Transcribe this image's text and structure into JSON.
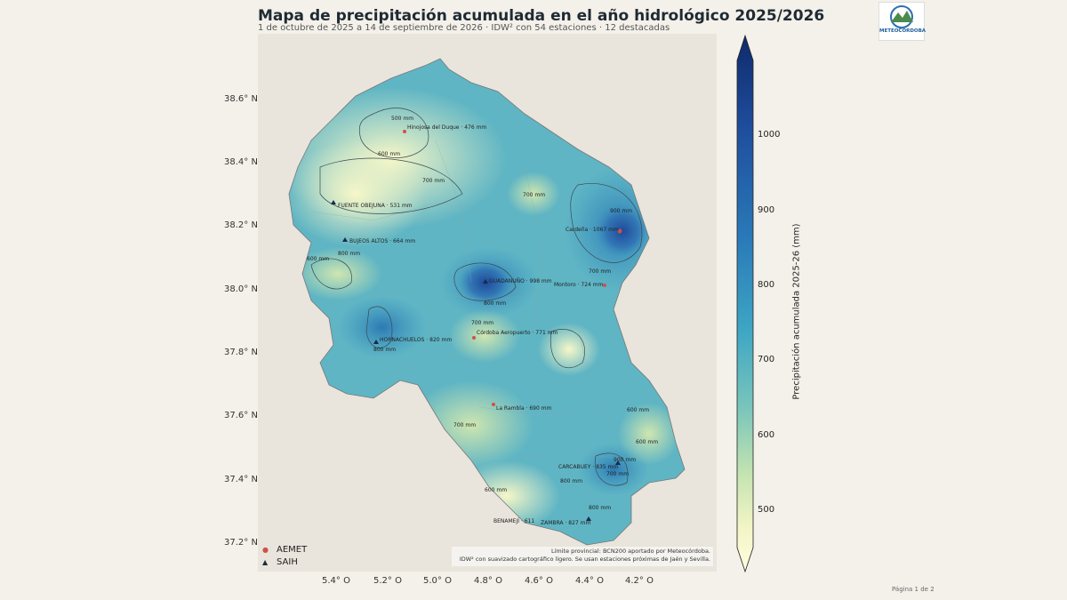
{
  "header": {
    "title": "Mapa de precipitación acumulada en el año hidrológico 2025/2026",
    "subtitle": "1 de octubre de 2025 a 14 de septiembre de 2026 · IDW² con 54 estaciones · 12 destacadas"
  },
  "logo": {
    "text": "METEOCÓRDOBA"
  },
  "axes": {
    "y_ticks": [
      "38.6° N",
      "38.4° N",
      "38.2° N",
      "38.0° N",
      "37.8° N",
      "37.6° N",
      "37.4° N",
      "37.2° N"
    ],
    "x_ticks": [
      "5.4° O",
      "5.2° O",
      "5.0° O",
      "4.8° O",
      "4.6° O",
      "4.4° O",
      "4.2° O"
    ]
  },
  "legend": {
    "aemet": "AEMET",
    "saih": "SAIH"
  },
  "credit": {
    "line1": "Límite provincial: BCN200 aportado por Meteocórdoba.",
    "line2": "IDW² con suavizado cartográfico ligero. Se usan estaciones próximas de Jaén y Sevilla."
  },
  "colorbar": {
    "label": "Precipitación acumulada 2025-26 (mm)",
    "ticks": [
      "1000",
      "900",
      "800",
      "700",
      "600",
      "500"
    ],
    "colors": [
      "#0f2a6b",
      "#1f4f9e",
      "#2a7ab8",
      "#3ea6c4",
      "#7cc6bb",
      "#c5e4b0",
      "#f3f5c6",
      "#fffde0"
    ]
  },
  "stations": [
    {
      "name": "Hinojosa del Duque · 476 mm",
      "type": "AEMET"
    },
    {
      "name": "FUENTE OBEJUNA · 531 mm",
      "type": "SAIH"
    },
    {
      "name": "BUJEOS ALTOS · 664 mm",
      "type": "SAIH"
    },
    {
      "name": "Cardeña · 1067 mm",
      "type": "AEMET"
    },
    {
      "name": "Montoro · 724 mm",
      "type": "AEMET"
    },
    {
      "name": "GUADANUÑO · 998 mm",
      "type": "SAIH"
    },
    {
      "name": "HORNACHUELOS · 820 mm",
      "type": "SAIH"
    },
    {
      "name": "Córdoba Aeropuerto · 771 mm",
      "type": "AEMET"
    },
    {
      "name": "La Rambla · 690 mm",
      "type": "AEMET"
    },
    {
      "name": "CARCABUEY · 835 mm",
      "type": "SAIH"
    },
    {
      "name": "BENAMEJÍ · 611",
      "type": "SAIH"
    },
    {
      "name": "ZAMBRA · 827 mm",
      "type": "SAIH"
    }
  ],
  "contours": [
    "500 mm",
    "600 mm",
    "700 mm",
    "700 mm",
    "900 mm",
    "800 mm",
    "600 mm",
    "700 mm",
    "800 mm",
    "800 mm",
    "700 mm",
    "700 mm",
    "600 mm",
    "800 mm",
    "700 mm",
    "900 mm",
    "800 mm",
    "600 mm",
    "600 mm"
  ],
  "footer": {
    "page": "Página 1 de 2"
  }
}
